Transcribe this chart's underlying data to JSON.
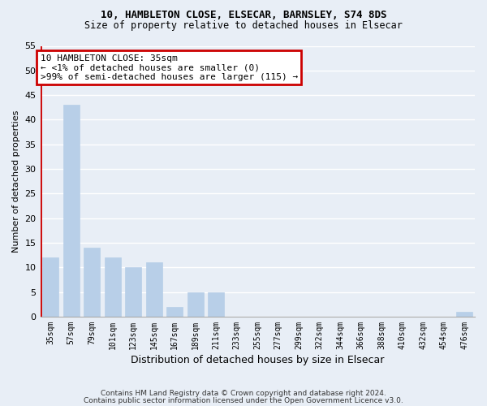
{
  "title_line1": "10, HAMBLETON CLOSE, ELSECAR, BARNSLEY, S74 8DS",
  "title_line2": "Size of property relative to detached houses in Elsecar",
  "xlabel": "Distribution of detached houses by size in Elsecar",
  "ylabel": "Number of detached properties",
  "categories": [
    "35sqm",
    "57sqm",
    "79sqm",
    "101sqm",
    "123sqm",
    "145sqm",
    "167sqm",
    "189sqm",
    "211sqm",
    "233sqm",
    "255sqm",
    "277sqm",
    "299sqm",
    "322sqm",
    "344sqm",
    "366sqm",
    "388sqm",
    "410sqm",
    "432sqm",
    "454sqm",
    "476sqm"
  ],
  "values": [
    12,
    43,
    14,
    12,
    10,
    11,
    2,
    5,
    5,
    0,
    0,
    0,
    0,
    0,
    0,
    0,
    0,
    0,
    0,
    0,
    1
  ],
  "bar_color": "#b8cfe8",
  "annotation_box_text": "10 HAMBLETON CLOSE: 35sqm\n← <1% of detached houses are smaller (0)\n>99% of semi-detached houses are larger (115) →",
  "annotation_box_color": "#ffffff",
  "annotation_box_edgecolor": "#cc0000",
  "ylim": [
    0,
    55
  ],
  "yticks": [
    0,
    5,
    10,
    15,
    20,
    25,
    30,
    35,
    40,
    45,
    50,
    55
  ],
  "footer_line1": "Contains HM Land Registry data © Crown copyright and database right 2024.",
  "footer_line2": "Contains public sector information licensed under the Open Government Licence v3.0.",
  "bg_color": "#e8eef6",
  "grid_color": "#ffffff",
  "vline_color": "#cc0000"
}
